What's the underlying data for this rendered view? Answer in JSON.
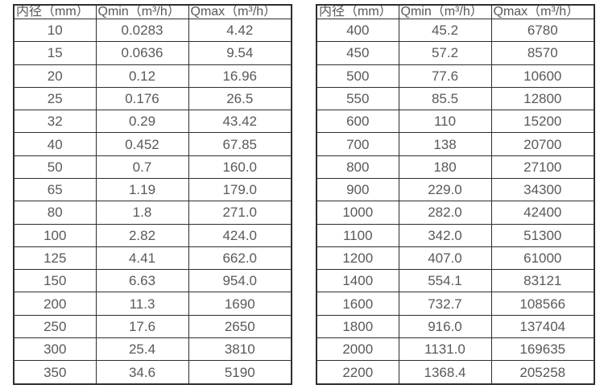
{
  "page": {
    "background": "#ffffff"
  },
  "colors": {
    "border": "#2e2e2e",
    "text": "#595959",
    "cell_background": "#ffffff"
  },
  "tables": [
    {
      "id": "flow-table-small-diameters",
      "headers": [
        "内径（mm）",
        "Qmin（m³/h）",
        "Qmax（m³/h）"
      ],
      "rows": [
        [
          "10",
          "0.0283",
          "4.42"
        ],
        [
          "15",
          "0.0636",
          "9.54"
        ],
        [
          "20",
          "0.12",
          "16.96"
        ],
        [
          "25",
          "0.176",
          "26.5"
        ],
        [
          "32",
          "0.29",
          "43.42"
        ],
        [
          "40",
          "0.452",
          "67.85"
        ],
        [
          "50",
          "0.7",
          "160.0"
        ],
        [
          "65",
          "1.19",
          "179.0"
        ],
        [
          "80",
          "1.8",
          "271.0"
        ],
        [
          "100",
          "2.82",
          "424.0"
        ],
        [
          "125",
          "4.41",
          "662.0"
        ],
        [
          "150",
          "6.63",
          "954.0"
        ],
        [
          "200",
          "11.3",
          "1690"
        ],
        [
          "250",
          "17.6",
          "2650"
        ],
        [
          "300",
          "25.4",
          "3810"
        ],
        [
          "350",
          "34.6",
          "5190"
        ]
      ]
    },
    {
      "id": "flow-table-large-diameters",
      "headers": [
        "内径（mm）",
        "Qmin（m³/h）",
        "Qmax（m³/h）"
      ],
      "rows": [
        [
          "400",
          "45.2",
          "6780"
        ],
        [
          "450",
          "57.2",
          "8570"
        ],
        [
          "500",
          "77.6",
          "10600"
        ],
        [
          "550",
          "85.5",
          "12800"
        ],
        [
          "600",
          "110",
          "15200"
        ],
        [
          "700",
          "138",
          "20700"
        ],
        [
          "800",
          "180",
          "27100"
        ],
        [
          "900",
          "229.0",
          "34300"
        ],
        [
          "1000",
          "282.0",
          "42400"
        ],
        [
          "1100",
          "342.0",
          "51300"
        ],
        [
          "1200",
          "407.0",
          "61000"
        ],
        [
          "1400",
          "554.1",
          "83121"
        ],
        [
          "1600",
          "732.7",
          "108566"
        ],
        [
          "1800",
          "916.0",
          "137404"
        ],
        [
          "2000",
          "1131.0",
          "169635"
        ],
        [
          "2200",
          "1368.4",
          "205258"
        ]
      ]
    }
  ]
}
